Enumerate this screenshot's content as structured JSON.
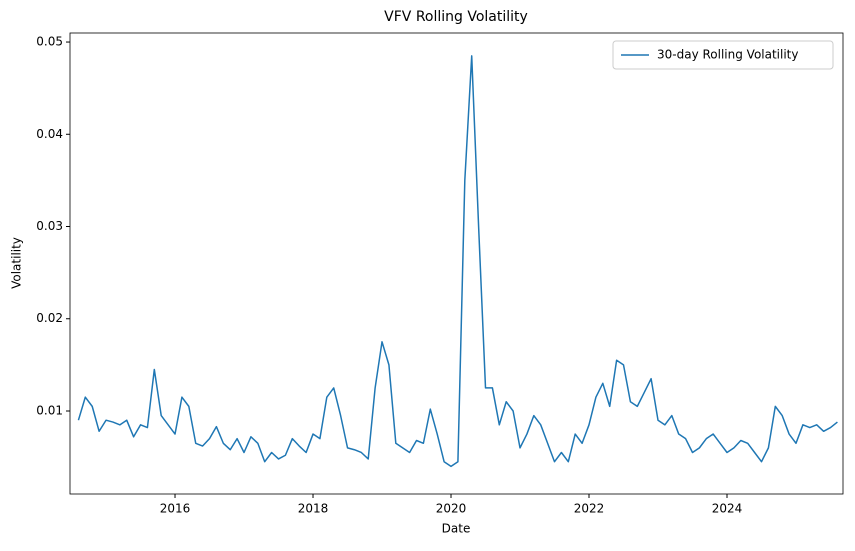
{
  "chart_data": {
    "type": "line",
    "title": "VFV Rolling Volatility",
    "x_label": "Date",
    "y_label": "Volatility",
    "x": [
      2014.6,
      2014.7,
      2014.8,
      2014.9,
      2015.0,
      2015.1,
      2015.2,
      2015.3,
      2015.4,
      2015.5,
      2015.6,
      2015.7,
      2015.8,
      2015.9,
      2016.0,
      2016.1,
      2016.2,
      2016.3,
      2016.4,
      2016.5,
      2016.6,
      2016.7,
      2016.8,
      2016.9,
      2017.0,
      2017.1,
      2017.2,
      2017.3,
      2017.4,
      2017.5,
      2017.6,
      2017.7,
      2017.8,
      2017.9,
      2018.0,
      2018.1,
      2018.2,
      2018.3,
      2018.4,
      2018.5,
      2018.6,
      2018.7,
      2018.8,
      2018.9,
      2019.0,
      2019.1,
      2019.2,
      2019.3,
      2019.4,
      2019.5,
      2019.6,
      2019.7,
      2019.8,
      2019.9,
      2020.0,
      2020.1,
      2020.2,
      2020.3,
      2020.4,
      2020.5,
      2020.6,
      2020.7,
      2020.8,
      2020.9,
      2021.0,
      2021.1,
      2021.2,
      2021.3,
      2021.4,
      2021.5,
      2021.6,
      2021.7,
      2021.8,
      2021.9,
      2022.0,
      2022.1,
      2022.2,
      2022.3,
      2022.4,
      2022.5,
      2022.6,
      2022.7,
      2022.8,
      2022.9,
      2023.0,
      2023.1,
      2023.2,
      2023.3,
      2023.4,
      2023.5,
      2023.6,
      2023.7,
      2023.8,
      2023.9,
      2024.0,
      2024.1,
      2024.2,
      2024.3,
      2024.4,
      2024.5,
      2024.6,
      2024.7,
      2024.8,
      2024.9,
      2025.0,
      2025.1,
      2025.2,
      2025.3,
      2025.4,
      2025.5,
      2025.6
    ],
    "series": [
      {
        "name": "30-day Rolling Volatility",
        "color": "#1f77b4",
        "values": [
          0.009,
          0.0115,
          0.0105,
          0.0078,
          0.009,
          0.0088,
          0.0085,
          0.009,
          0.0072,
          0.0085,
          0.0082,
          0.0145,
          0.0095,
          0.0085,
          0.0075,
          0.0115,
          0.0105,
          0.0065,
          0.0062,
          0.007,
          0.0083,
          0.0065,
          0.0058,
          0.007,
          0.0055,
          0.0072,
          0.0065,
          0.0045,
          0.0055,
          0.0048,
          0.0052,
          0.007,
          0.0062,
          0.0055,
          0.0075,
          0.007,
          0.0115,
          0.0125,
          0.0095,
          0.006,
          0.0058,
          0.0055,
          0.0048,
          0.0125,
          0.0175,
          0.015,
          0.0065,
          0.006,
          0.0055,
          0.0068,
          0.0065,
          0.0102,
          0.0075,
          0.0045,
          0.004,
          0.0045,
          0.035,
          0.0485,
          0.03,
          0.0125,
          0.0125,
          0.0085,
          0.011,
          0.01,
          0.006,
          0.0075,
          0.0095,
          0.0085,
          0.0065,
          0.0045,
          0.0055,
          0.0045,
          0.0075,
          0.0065,
          0.0085,
          0.0115,
          0.013,
          0.0105,
          0.0155,
          0.015,
          0.011,
          0.0105,
          0.012,
          0.0135,
          0.009,
          0.0085,
          0.0095,
          0.0075,
          0.007,
          0.0055,
          0.006,
          0.007,
          0.0075,
          0.0065,
          0.0055,
          0.006,
          0.0068,
          0.0065,
          0.0055,
          0.0045,
          0.006,
          0.0105,
          0.0095,
          0.0075,
          0.0065,
          0.0085,
          0.0082,
          0.0085,
          0.0078,
          0.0082,
          0.0088
        ]
      }
    ],
    "xlim": [
      2014.478,
      2025.681
    ],
    "ylim": [
      0.001,
      0.05098
    ],
    "xticks": [
      2016,
      2018,
      2020,
      2022,
      2024
    ],
    "yticks": [
      0.01,
      0.02,
      0.03,
      0.04,
      0.05
    ],
    "legend": "upper right",
    "grid": false
  }
}
